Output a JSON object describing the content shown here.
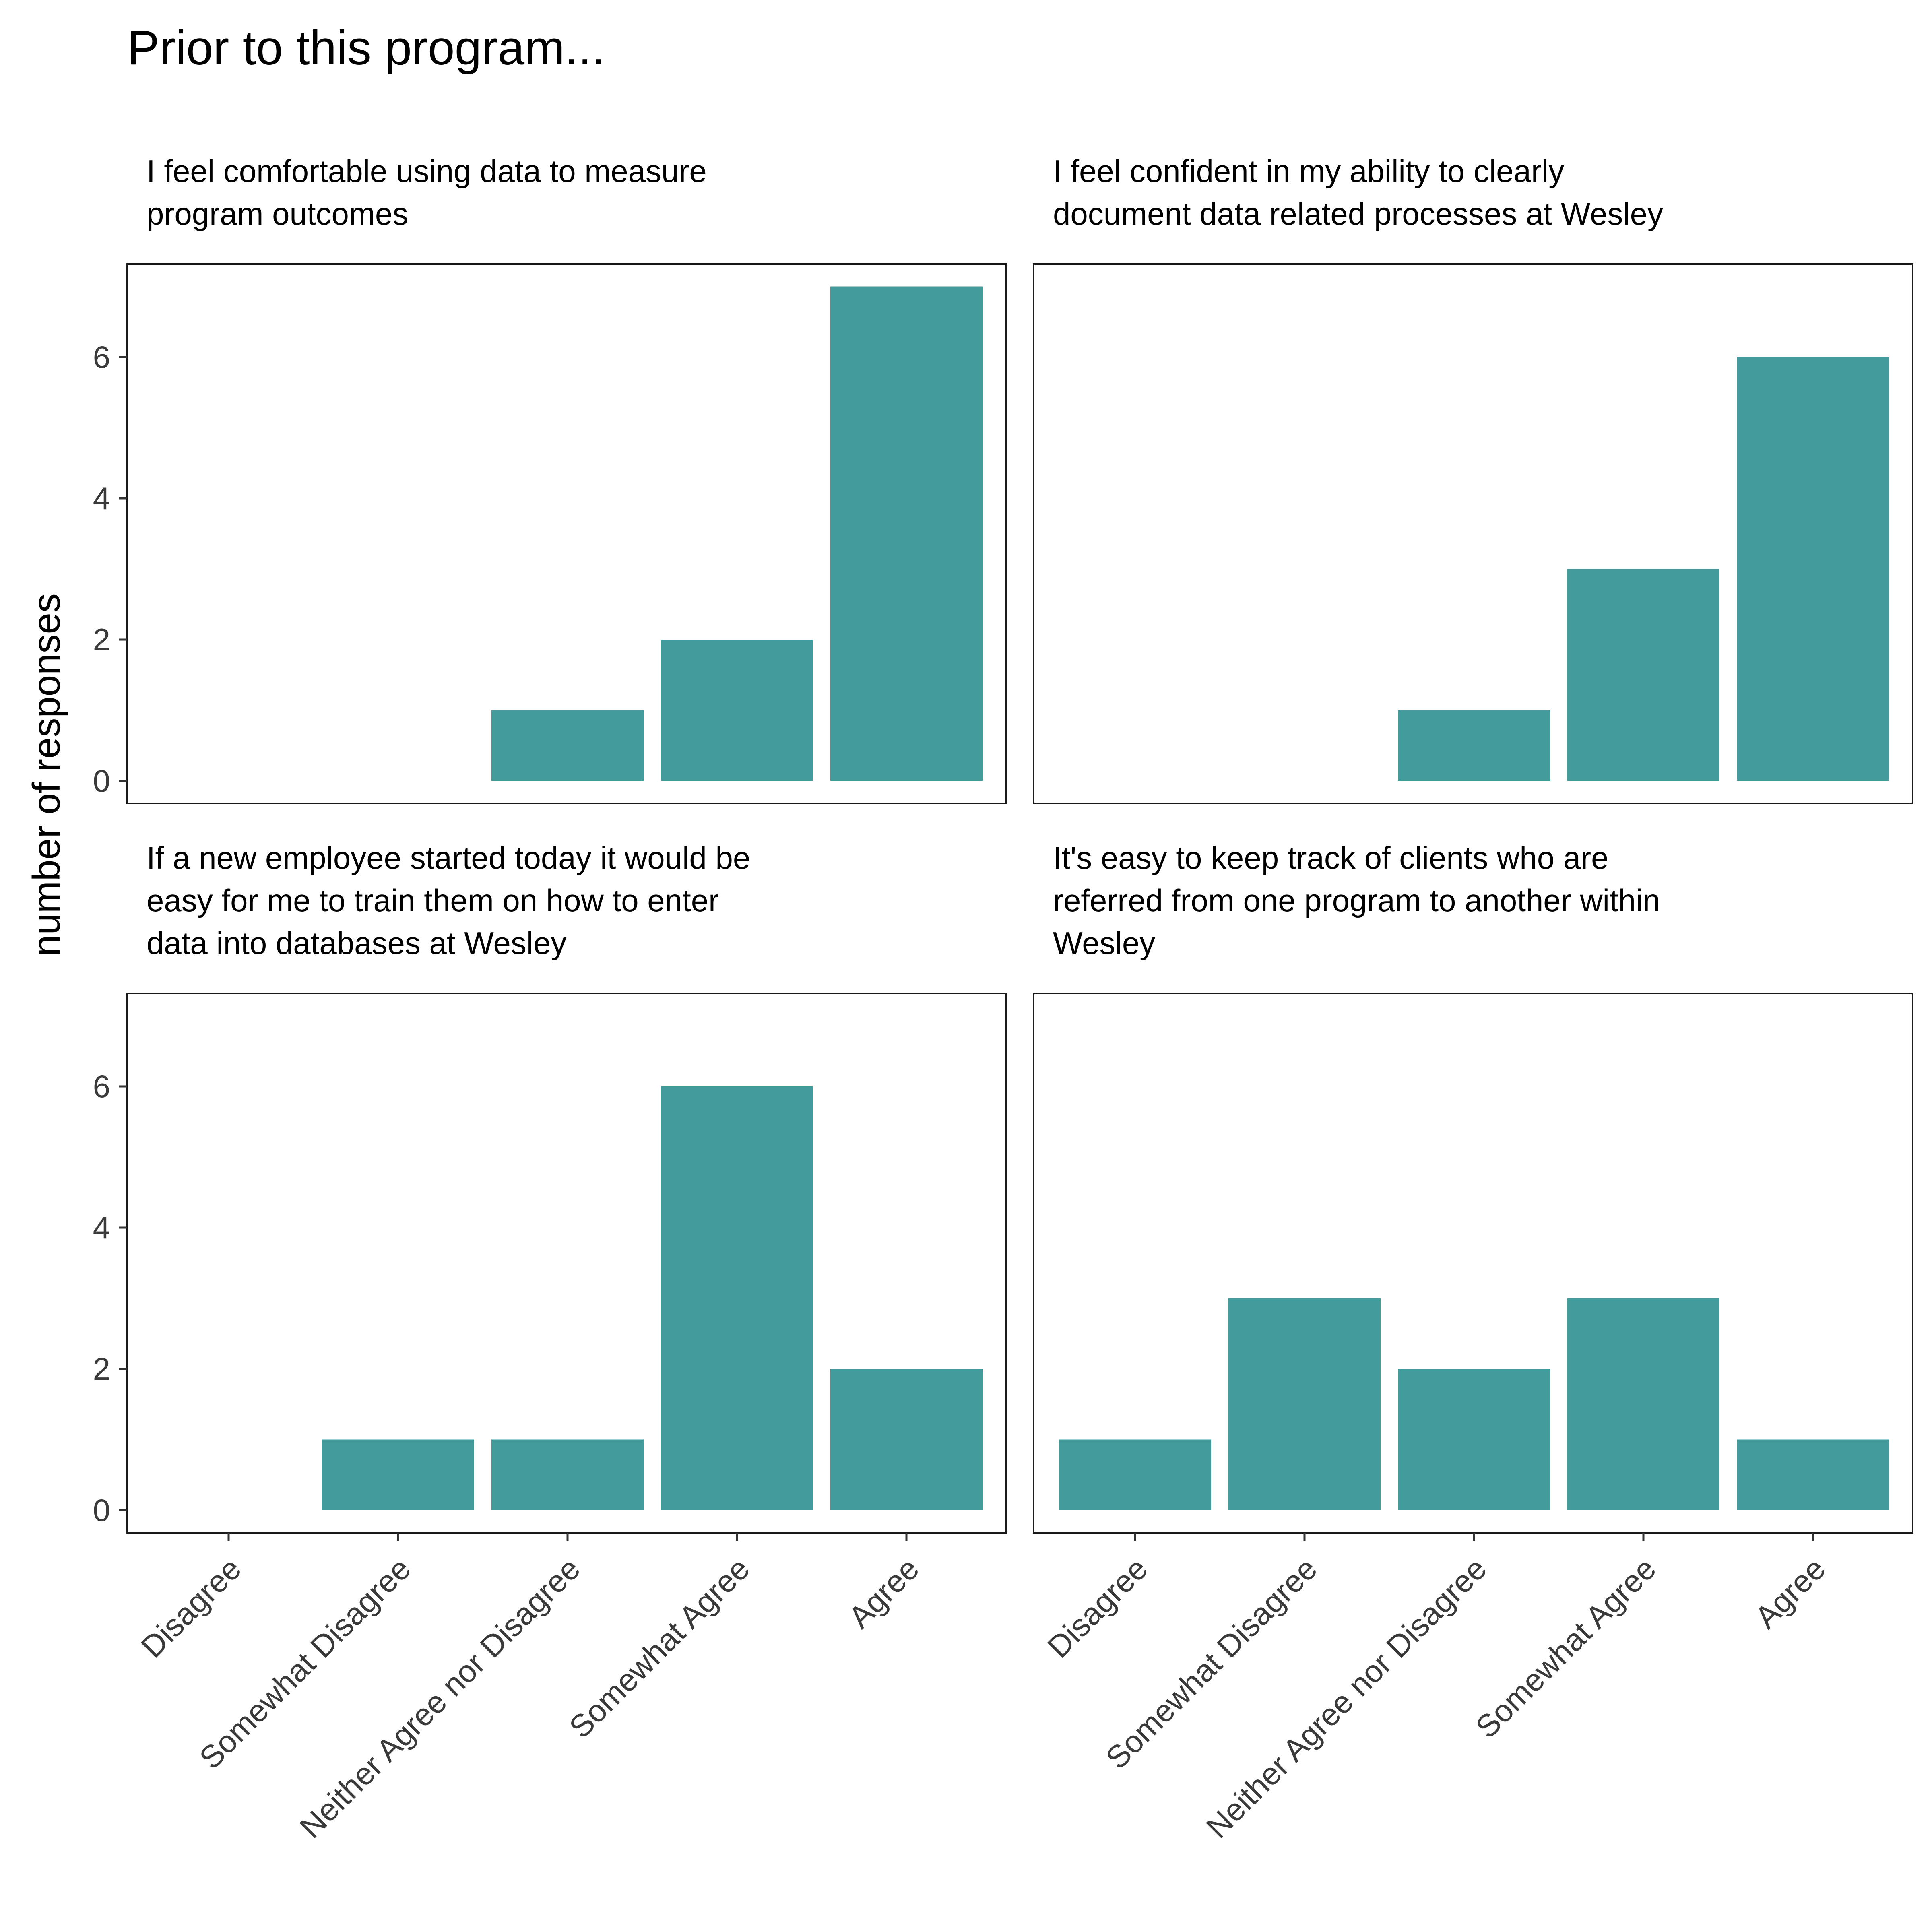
{
  "chart_data": {
    "type": "bar",
    "title": "Prior to this program...",
    "ylabel": "number of responses",
    "ylim": [
      0,
      7
    ],
    "yticks": [
      0,
      2,
      4,
      6
    ],
    "bar_color": "#439C9B",
    "categories": [
      "Disagree",
      "Somewhat Disagree",
      "Neither Agree nor Disagree",
      "Somewhat Agree",
      "Agree"
    ],
    "facets": [
      {
        "title_lines": [
          "I feel comfortable using data to measure",
          "program outcomes"
        ],
        "values": [
          0,
          0,
          1,
          2,
          7
        ]
      },
      {
        "title_lines": [
          "I feel confident in my ability to clearly",
          "document data related processes at Wesley"
        ],
        "values": [
          0,
          0,
          1,
          3,
          6
        ]
      },
      {
        "title_lines": [
          "If a new employee started today it would be",
          "easy for me to train them on how to enter",
          "data into databases at Wesley"
        ],
        "values": [
          0,
          1,
          1,
          6,
          2
        ]
      },
      {
        "title_lines": [
          "It's easy to keep track of clients who are",
          "referred from one program to another within",
          "Wesley"
        ],
        "values": [
          1,
          3,
          2,
          3,
          1
        ]
      }
    ]
  }
}
